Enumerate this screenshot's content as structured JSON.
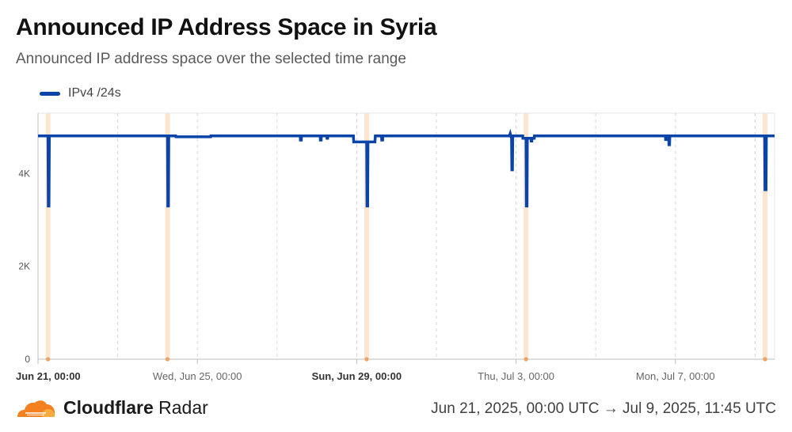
{
  "header": {
    "title": "Announced IP Address Space in Syria",
    "subtitle": "Announced IP address space over the selected time range"
  },
  "colors": {
    "series": "#0a44a8",
    "highlight_band": "#fde6d0",
    "highlight_dot": "#f0a060",
    "grid": "#d8d8d8",
    "axis": "#bdbdbd",
    "brand_orange": "#f48120",
    "brand_orange_light": "#faad3f"
  },
  "chart_data": {
    "type": "line",
    "x_unit": "hours since Jun 21, 2025, 00:00 UTC",
    "xlim": [
      0,
      443.75
    ],
    "ylim": [
      0,
      5300
    ],
    "y_ticks": [
      {
        "value": 0,
        "label": "0"
      },
      {
        "value": 2000,
        "label": "2K"
      },
      {
        "value": 4000,
        "label": "4K"
      }
    ],
    "x_ticks": [
      {
        "value": 0,
        "label": "Jun 21, 00:00",
        "bold": true
      },
      {
        "value": 96,
        "label": "Wed, Jun 25, 00:00",
        "bold": false
      },
      {
        "value": 192,
        "label": "Sun, Jun 29, 00:00",
        "bold": true
      },
      {
        "value": 288,
        "label": "Thu, Jul 3, 00:00",
        "bold": false
      },
      {
        "value": 384,
        "label": "Mon, Jul 7, 00:00",
        "bold": false
      }
    ],
    "minor_grid_x": [
      48,
      144,
      240,
      336,
      432
    ],
    "highlight_bands": [
      6,
      78,
      198,
      294,
      438
    ],
    "series": [
      {
        "name": "IPv4 /24s",
        "color": "#0a44a8",
        "points": [
          [
            0,
            4810
          ],
          [
            6,
            4810
          ],
          [
            6.2,
            3300
          ],
          [
            6.6,
            3300
          ],
          [
            6.8,
            4810
          ],
          [
            78,
            4810
          ],
          [
            78.2,
            3300
          ],
          [
            78.6,
            3300
          ],
          [
            78.8,
            4810
          ],
          [
            83,
            4810
          ],
          [
            83.1,
            4790
          ],
          [
            104,
            4790
          ],
          [
            104.1,
            4810
          ],
          [
            158,
            4810
          ],
          [
            158.1,
            4720
          ],
          [
            158.6,
            4720
          ],
          [
            158.7,
            4810
          ],
          [
            170,
            4810
          ],
          [
            170.1,
            4720
          ],
          [
            170.6,
            4720
          ],
          [
            170.7,
            4810
          ],
          [
            174,
            4810
          ],
          [
            174.1,
            4760
          ],
          [
            174.5,
            4760
          ],
          [
            174.6,
            4810
          ],
          [
            190,
            4810
          ],
          [
            190.2,
            4680
          ],
          [
            198,
            4680
          ],
          [
            198.2,
            3300
          ],
          [
            198.6,
            3300
          ],
          [
            198.8,
            4680
          ],
          [
            203,
            4680
          ],
          [
            203.2,
            4810
          ],
          [
            207,
            4810
          ],
          [
            207.1,
            4720
          ],
          [
            207.6,
            4720
          ],
          [
            207.7,
            4810
          ],
          [
            284,
            4810
          ],
          [
            284.5,
            4860
          ],
          [
            285,
            4790
          ],
          [
            285.3,
            4790
          ],
          [
            285.5,
            4080
          ],
          [
            285.8,
            4080
          ],
          [
            286,
            4810
          ],
          [
            292,
            4810
          ],
          [
            292.1,
            4760
          ],
          [
            294,
            4760
          ],
          [
            294.2,
            3300
          ],
          [
            294.6,
            3300
          ],
          [
            294.8,
            4760
          ],
          [
            297,
            4760
          ],
          [
            297.1,
            4700
          ],
          [
            297.5,
            4700
          ],
          [
            297.6,
            4760
          ],
          [
            299,
            4760
          ],
          [
            299.1,
            4810
          ],
          [
            378,
            4810
          ],
          [
            378.1,
            4730
          ],
          [
            378.6,
            4730
          ],
          [
            378.7,
            4810
          ],
          [
            380,
            4810
          ],
          [
            380.1,
            4620
          ],
          [
            380.5,
            4620
          ],
          [
            380.6,
            4810
          ],
          [
            437.8,
            4810
          ],
          [
            438,
            3650
          ],
          [
            438.6,
            3650
          ],
          [
            438.8,
            4810
          ],
          [
            443.75,
            4810
          ]
        ]
      }
    ]
  },
  "footer": {
    "brand_bold": "Cloudflare",
    "brand_light": " Radar",
    "logo_icon": "cloudflare-cloud-icon",
    "time_range": "Jun 21, 2025, 00:00 UTC → Jul 9, 2025, 11:45 UTC"
  }
}
